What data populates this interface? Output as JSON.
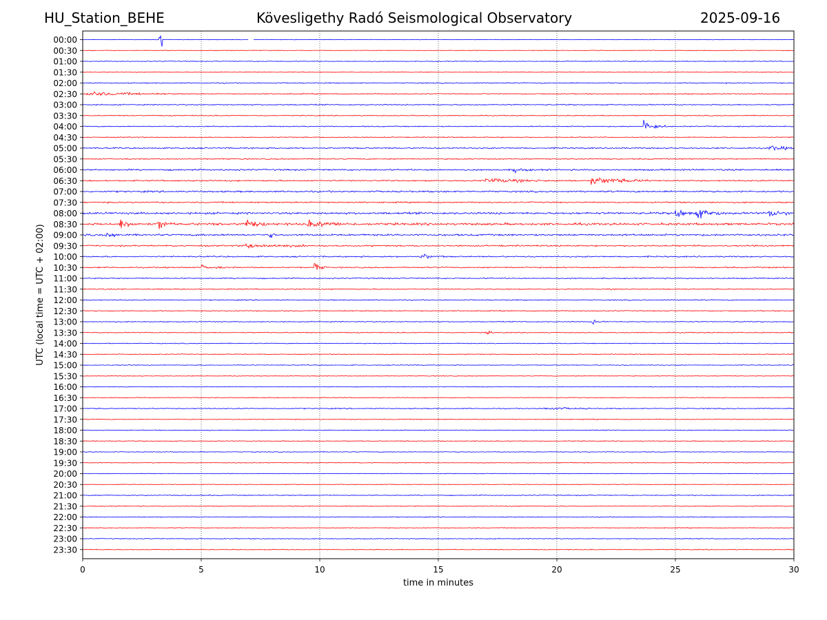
{
  "header": {
    "station": "HU_Station_BEHE",
    "title": "Kövesligethy Radó Seismological Observatory",
    "date": "2025-09-16"
  },
  "chart_data": {
    "type": "line",
    "xlabel": "time in minutes",
    "ylabel": "UTC (local time = UTC + 02:00)",
    "xlim": [
      0,
      30
    ],
    "xticks": [
      0,
      5,
      10,
      15,
      20,
      25,
      30
    ],
    "grid": "vertical dotted",
    "colors": {
      "even_rows": "#0000ff",
      "odd_rows": "#ff0000"
    },
    "rows": [
      "00:00",
      "00:30",
      "01:00",
      "01:30",
      "02:00",
      "02:30",
      "03:00",
      "03:30",
      "04:00",
      "04:30",
      "05:00",
      "05:30",
      "06:00",
      "06:30",
      "07:00",
      "07:30",
      "08:00",
      "08:30",
      "09:00",
      "09:30",
      "10:00",
      "10:30",
      "11:00",
      "11:30",
      "12:00",
      "12:30",
      "13:00",
      "13:30",
      "14:00",
      "14:30",
      "15:00",
      "15:30",
      "16:00",
      "16:30",
      "17:00",
      "17:30",
      "18:00",
      "18:30",
      "19:00",
      "19:30",
      "20:00",
      "20:30",
      "21:00",
      "21:30",
      "22:00",
      "22:30",
      "23:00",
      "23:30"
    ],
    "noise_level": [
      0.5,
      0.6,
      0.7,
      0.7,
      1.0,
      1.0,
      1.1,
      0.9,
      1.0,
      0.9,
      1.3,
      1.1,
      1.5,
      1.4,
      1.6,
      1.3,
      2.0,
      2.2,
      1.8,
      1.4,
      1.3,
      1.2,
      1.1,
      1.0,
      1.0,
      1.0,
      0.9,
      0.9,
      0.8,
      0.8,
      0.7,
      0.7,
      0.7,
      0.8,
      1.0,
      0.8,
      0.8,
      0.8,
      0.7,
      0.7,
      0.6,
      0.6,
      0.9,
      0.8,
      0.8,
      0.8,
      0.8,
      0.8
    ],
    "events": [
      {
        "row": 0,
        "minute": 3.25,
        "amplitude": 14,
        "duration": 0.1
      },
      {
        "row": 5,
        "minute": 0.2,
        "amplitude": 4,
        "duration": 3.5
      },
      {
        "row": 8,
        "minute": 23.7,
        "amplitude": 12,
        "duration": 0.9
      },
      {
        "row": 10,
        "minute": 29.0,
        "amplitude": 5,
        "duration": 1.2
      },
      {
        "row": 12,
        "minute": 18.2,
        "amplitude": 4,
        "duration": 0.8
      },
      {
        "row": 13,
        "minute": 17.0,
        "amplitude": 4,
        "duration": 3.0
      },
      {
        "row": 13,
        "minute": 21.5,
        "amplitude": 7,
        "duration": 2.5
      },
      {
        "row": 16,
        "minute": 25.0,
        "amplitude": 9,
        "duration": 0.8
      },
      {
        "row": 16,
        "minute": 25.9,
        "amplitude": 10,
        "duration": 1.2
      },
      {
        "row": 16,
        "minute": 29.0,
        "amplitude": 7,
        "duration": 1.0
      },
      {
        "row": 17,
        "minute": 1.6,
        "amplitude": 9,
        "duration": 0.8
      },
      {
        "row": 17,
        "minute": 3.2,
        "amplitude": 10,
        "duration": 0.6
      },
      {
        "row": 17,
        "minute": 6.8,
        "amplitude": 9,
        "duration": 1.0
      },
      {
        "row": 17,
        "minute": 9.5,
        "amplitude": 6,
        "duration": 2.0
      },
      {
        "row": 18,
        "minute": 1.0,
        "amplitude": 6,
        "duration": 0.8
      },
      {
        "row": 18,
        "minute": 7.9,
        "amplitude": 5,
        "duration": 0.4
      },
      {
        "row": 19,
        "minute": 6.8,
        "amplitude": 4,
        "duration": 3.0
      },
      {
        "row": 20,
        "minute": 14.3,
        "amplitude": 5,
        "duration": 1.0
      },
      {
        "row": 21,
        "minute": 9.8,
        "amplitude": 8,
        "duration": 0.5
      },
      {
        "row": 21,
        "minute": 5.0,
        "amplitude": 4,
        "duration": 1.0
      },
      {
        "row": 26,
        "minute": 21.5,
        "amplitude": 4,
        "duration": 0.6
      },
      {
        "row": 27,
        "minute": 17.0,
        "amplitude": 4,
        "duration": 0.4
      },
      {
        "row": 34,
        "minute": 19.5,
        "amplitude": 3,
        "duration": 2.0
      }
    ],
    "gaps": [
      {
        "row": 0,
        "minute": 7.0,
        "duration": 0.2
      }
    ]
  }
}
